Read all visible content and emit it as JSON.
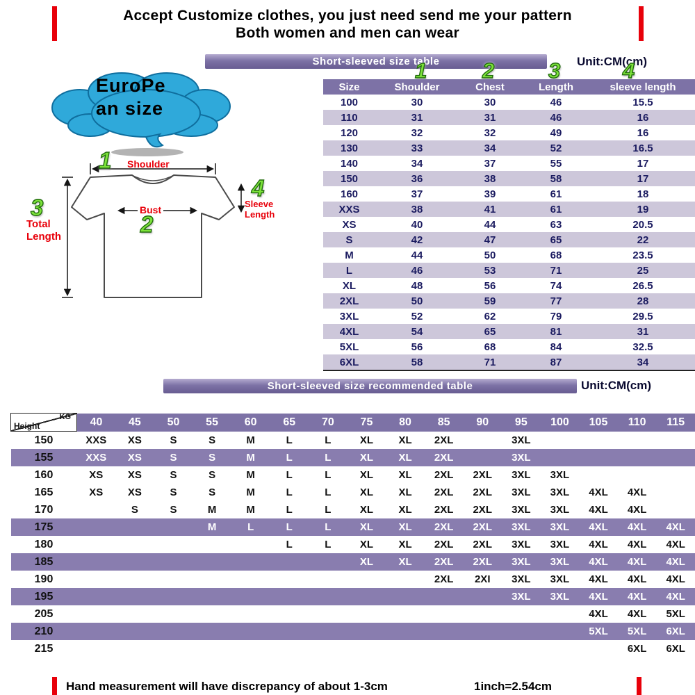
{
  "header": {
    "line1": "Accept Customize clothes, you just need send me your pattern",
    "line2": "Both women and men can wear"
  },
  "size_section": {
    "banner": "Short-sleeved size  table",
    "unit": "Unit:CM(cm)",
    "col_markers": [
      "1",
      "2",
      "3",
      "4"
    ],
    "columns": [
      "Size",
      "Shoulder",
      "Chest",
      "Length",
      "sleeve length"
    ],
    "rows": [
      [
        "100",
        "30",
        "30",
        "46",
        "15.5"
      ],
      [
        "110",
        "31",
        "31",
        "46",
        "16"
      ],
      [
        "120",
        "32",
        "32",
        "49",
        "16"
      ],
      [
        "130",
        "33",
        "34",
        "52",
        "16.5"
      ],
      [
        "140",
        "34",
        "37",
        "55",
        "17"
      ],
      [
        "150",
        "36",
        "38",
        "58",
        "17"
      ],
      [
        "160",
        "37",
        "39",
        "61",
        "18"
      ],
      [
        "XXS",
        "38",
        "41",
        "61",
        "19"
      ],
      [
        "XS",
        "40",
        "44",
        "63",
        "20.5"
      ],
      [
        "S",
        "42",
        "47",
        "65",
        "22"
      ],
      [
        "M",
        "44",
        "50",
        "68",
        "23.5"
      ],
      [
        "L",
        "46",
        "53",
        "71",
        "25"
      ],
      [
        "XL",
        "48",
        "56",
        "74",
        "26.5"
      ],
      [
        "2XL",
        "50",
        "59",
        "77",
        "28"
      ],
      [
        "3XL",
        "52",
        "62",
        "79",
        "29.5"
      ],
      [
        "4XL",
        "54",
        "65",
        "81",
        "31"
      ],
      [
        "5XL",
        "56",
        "68",
        "84",
        "32.5"
      ],
      [
        "6XL",
        "58",
        "71",
        "87",
        "34"
      ]
    ]
  },
  "diagram": {
    "cloud": {
      "line1": "EuroPe",
      "line2": "an  size"
    },
    "labels": {
      "shoulder": "Shoulder",
      "bust": "Bust",
      "total_line1": "Total",
      "total_line2": "Length",
      "sleeve_line1": "Sleeve",
      "sleeve_line2": "Length"
    },
    "markers": {
      "shoulder": "1",
      "bust": "2",
      "total_length": "3",
      "sleeve_length": "4"
    }
  },
  "recommend_section": {
    "banner": "Short-sleeved size recommended table",
    "unit": "Unit:CM(cm)",
    "corner": {
      "top": "KG",
      "bottom": "Height"
    },
    "weights": [
      "40",
      "45",
      "50",
      "55",
      "60",
      "65",
      "70",
      "75",
      "80",
      "85",
      "90",
      "95",
      "100",
      "105",
      "110",
      "115"
    ],
    "rows": [
      {
        "height": "150",
        "highlight": false,
        "cells": [
          "XXS",
          "XS",
          "S",
          "S",
          "M",
          "L",
          "L",
          "XL",
          "XL",
          "2XL",
          "",
          "3XL",
          "",
          "",
          "",
          ""
        ]
      },
      {
        "height": "155",
        "highlight": true,
        "cells": [
          "XXS",
          "XS",
          "S",
          "S",
          "M",
          "L",
          "L",
          "XL",
          "XL",
          "2XL",
          "",
          "3XL",
          "",
          "",
          "",
          ""
        ]
      },
      {
        "height": "160",
        "highlight": false,
        "cells": [
          "XS",
          "XS",
          "S",
          "S",
          "M",
          "L",
          "L",
          "XL",
          "XL",
          "2XL",
          "2XL",
          "3XL",
          "3XL",
          "",
          "",
          ""
        ]
      },
      {
        "height": "165",
        "highlight": false,
        "cells": [
          "XS",
          "XS",
          "S",
          "S",
          "M",
          "L",
          "L",
          "XL",
          "XL",
          "2XL",
          "2XL",
          "3XL",
          "3XL",
          "4XL",
          "4XL",
          ""
        ]
      },
      {
        "height": "170",
        "highlight": false,
        "cells": [
          "",
          "S",
          "S",
          "M",
          "M",
          "L",
          "L",
          "XL",
          "XL",
          "2XL",
          "2XL",
          "3XL",
          "3XL",
          "4XL",
          "4XL",
          ""
        ]
      },
      {
        "height": "175",
        "highlight": true,
        "cells": [
          "",
          "",
          "",
          "M",
          "L",
          "L",
          "L",
          "XL",
          "XL",
          "2XL",
          "2XL",
          "3XL",
          "3XL",
          "4XL",
          "4XL",
          "4XL"
        ]
      },
      {
        "height": "180",
        "highlight": false,
        "cells": [
          "",
          "",
          "",
          "",
          "",
          "L",
          "L",
          "XL",
          "XL",
          "2XL",
          "2XL",
          "3XL",
          "3XL",
          "4XL",
          "4XL",
          "4XL"
        ]
      },
      {
        "height": "185",
        "highlight": true,
        "cells": [
          "",
          "",
          "",
          "",
          "",
          "",
          "",
          "XL",
          "XL",
          "2XL",
          "2XL",
          "3XL",
          "3XL",
          "4XL",
          "4XL",
          "4XL"
        ]
      },
      {
        "height": "190",
        "highlight": false,
        "cells": [
          "",
          "",
          "",
          "",
          "",
          "",
          "",
          "",
          "",
          "2XL",
          "2XI",
          "3XL",
          "3XL",
          "4XL",
          "4XL",
          "4XL"
        ]
      },
      {
        "height": "195",
        "highlight": true,
        "cells": [
          "",
          "",
          "",
          "",
          "",
          "",
          "",
          "",
          "",
          "",
          "",
          "3XL",
          "3XL",
          "4XL",
          "4XL",
          "4XL"
        ]
      },
      {
        "height": "205",
        "highlight": false,
        "cells": [
          "",
          "",
          "",
          "",
          "",
          "",
          "",
          "",
          "",
          "",
          "",
          "",
          "",
          "4XL",
          "4XL",
          "5XL"
        ]
      },
      {
        "height": "210",
        "highlight": true,
        "cells": [
          "",
          "",
          "",
          "",
          "",
          "",
          "",
          "",
          "",
          "",
          "",
          "",
          "",
          "5XL",
          "5XL",
          "6XL"
        ]
      },
      {
        "height": "215",
        "highlight": false,
        "cells": [
          "",
          "",
          "",
          "",
          "",
          "",
          "",
          "",
          "",
          "",
          "",
          "",
          "",
          "",
          "6XL",
          "6XL"
        ]
      }
    ]
  },
  "footer": {
    "note": "Hand measurement will have discrepancy of about  1-3cm",
    "conversion": "1inch=2.54cm"
  },
  "colors": {
    "purple": "#7d72a6",
    "purple_dark": "#675c91",
    "purple_light": "#b5abd0",
    "lavender": "#cdc7da",
    "stripe": "#897daf",
    "red": "#e8000a",
    "green": "#7ce23a",
    "green_edge": "#226b0e",
    "navy": "#1b1b60",
    "cloud_blue": "#2fa9da",
    "cloud_edge": "#0f6e9e"
  }
}
